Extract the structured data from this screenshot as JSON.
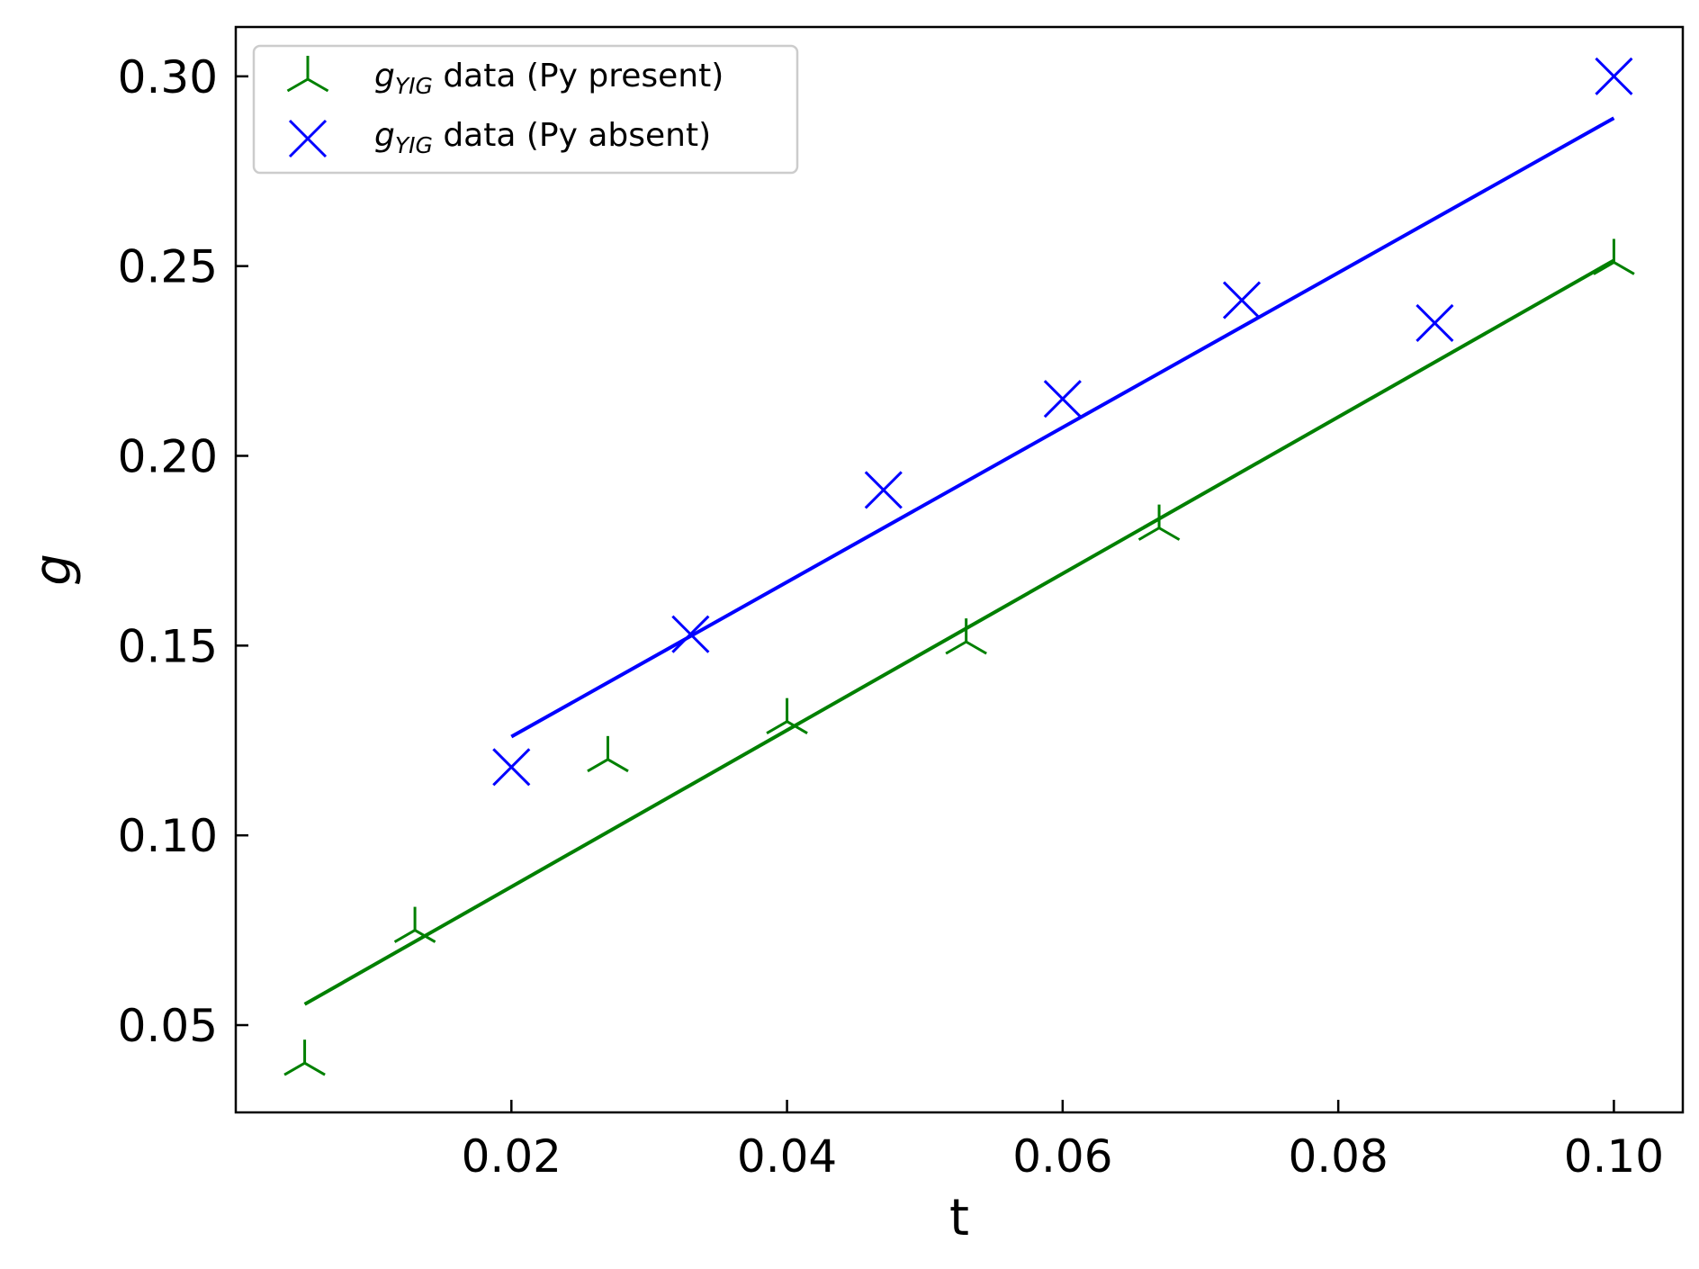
{
  "chart_data": {
    "type": "scatter",
    "xlabel": "t",
    "ylabel": "g",
    "xlim": [
      0.0,
      0.105
    ],
    "ylim": [
      0.027,
      0.313
    ],
    "x_ticks": [
      0.02,
      0.04,
      0.06,
      0.08,
      0.1
    ],
    "x_tick_labels": [
      "0.02",
      "0.04",
      "0.06",
      "0.08",
      "0.10"
    ],
    "y_ticks": [
      0.05,
      0.1,
      0.15,
      0.2,
      0.25,
      0.3
    ],
    "y_tick_labels": [
      "0.05",
      "0.10",
      "0.15",
      "0.20",
      "0.25",
      "0.30"
    ],
    "grid": false,
    "legend_position": "top-left",
    "series": [
      {
        "name": "g_YIG data (Py present)",
        "legend_symbol": "g",
        "legend_subscript": "YIG",
        "legend_suffix": " data (Py present)",
        "marker": "tri-down",
        "color": "#008000",
        "x": [
          0.005,
          0.013,
          0.027,
          0.04,
          0.053,
          0.067,
          0.1
        ],
        "y": [
          0.04,
          0.075,
          0.12,
          0.13,
          0.151,
          0.181,
          0.251
        ],
        "fit": {
          "x": [
            0.005,
            0.1
          ],
          "y": [
            0.0555,
            0.2515
          ]
        }
      },
      {
        "name": "g_YIG data (Py absent)",
        "legend_symbol": "g",
        "legend_subscript": "YIG",
        "legend_suffix": " data (Py absent)",
        "marker": "x",
        "color": "#0000ff",
        "x": [
          0.02,
          0.033,
          0.047,
          0.06,
          0.073,
          0.087,
          0.1
        ],
        "y": [
          0.118,
          0.153,
          0.191,
          0.215,
          0.241,
          0.235,
          0.3
        ],
        "fit": {
          "x": [
            0.02,
            0.1
          ],
          "y": [
            0.126,
            0.289
          ]
        }
      }
    ]
  }
}
